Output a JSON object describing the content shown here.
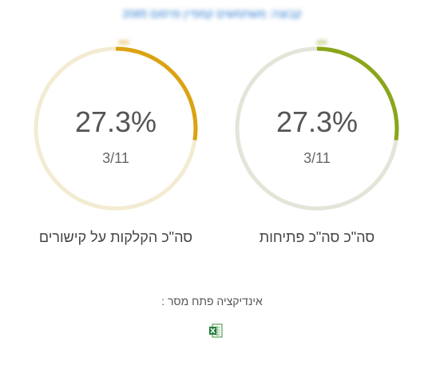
{
  "header": {
    "link_text": "קבוצה: משתמשים קמפיין פרסום 2085"
  },
  "gauges": [
    {
      "id": "opens",
      "percent_text": "27.3%",
      "fraction_text": "3/11",
      "caption": "סה\"כ סה\"כ פתיחות",
      "value": 0.273,
      "color": "#8aa61a",
      "track_color": "#e2e5d8"
    },
    {
      "id": "clicks",
      "percent_text": "27.3%",
      "fraction_text": "3/11",
      "caption": "סה\"כ הקלקות על קישורים",
      "value": 0.273,
      "color": "#dba312",
      "track_color": "#f3ebd2"
    }
  ],
  "footer": {
    "indicator_label": "אינדיקציה פתח מסר :",
    "export_icon": "excel-icon"
  }
}
